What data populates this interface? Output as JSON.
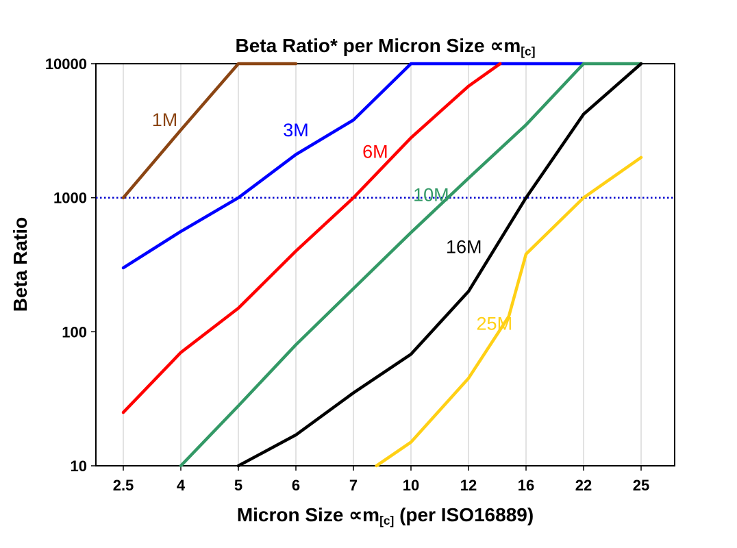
{
  "title": {
    "main": "Beta Ratio* per Micron Size ∝m",
    "sub": "[c]"
  },
  "ylabel": "Beta Ratio",
  "xlabel": {
    "main": "Micron Size ∝m",
    "sub": "[c]",
    "post": " (per ISO16889)"
  },
  "chart_data": {
    "type": "line",
    "title": "Beta Ratio* per Micron Size ∝m[c]",
    "xlabel": "Micron Size ∝m[c] (per ISO16889)",
    "ylabel": "Beta Ratio",
    "yscale": "log",
    "ylim": [
      10,
      10000
    ],
    "y_ticks": [
      10,
      100,
      1000,
      10000
    ],
    "categories": [
      "2.5",
      "4",
      "5",
      "6",
      "7",
      "10",
      "12",
      "16",
      "22",
      "25"
    ],
    "grid": {
      "vertical": true,
      "color": "#c6c6c6"
    },
    "border_color": "#000000",
    "reference_line": {
      "value": 1000,
      "color": "#0000CD",
      "style": "dotted"
    },
    "legend_position": "inline-labels",
    "series": [
      {
        "name": "1M",
        "color": "#8B4513",
        "points": [
          [
            0,
            1000
          ],
          [
            1,
            3200
          ],
          [
            2,
            10000
          ],
          [
            3,
            10000
          ]
        ],
        "label": {
          "xi": 0.72,
          "value": 3800
        }
      },
      {
        "name": "3M",
        "color": "#0000FF",
        "points": [
          [
            0,
            300
          ],
          [
            1,
            560
          ],
          [
            2,
            1000
          ],
          [
            3,
            2100
          ],
          [
            4,
            3800
          ],
          [
            5,
            10000
          ],
          [
            8,
            10000
          ]
        ],
        "label": {
          "xi": 3.0,
          "value": 3200
        }
      },
      {
        "name": "6M",
        "color": "#FF0000",
        "points": [
          [
            0,
            25
          ],
          [
            1,
            70
          ],
          [
            2,
            150
          ],
          [
            3,
            400
          ],
          [
            4,
            1000
          ],
          [
            5,
            2800
          ],
          [
            6,
            6800
          ],
          [
            6.55,
            10000
          ]
        ],
        "label": {
          "xi": 4.38,
          "value": 2200
        }
      },
      {
        "name": "10M",
        "color": "#339966",
        "points": [
          [
            1,
            10
          ],
          [
            2,
            28
          ],
          [
            3,
            80
          ],
          [
            4,
            210
          ],
          [
            5,
            550
          ],
          [
            6,
            1400
          ],
          [
            7,
            3500
          ],
          [
            8,
            10000
          ],
          [
            9,
            10000
          ]
        ],
        "label": {
          "xi": 5.35,
          "value": 1050
        }
      },
      {
        "name": "16M",
        "color": "#000000",
        "points": [
          [
            2,
            10
          ],
          [
            3,
            17
          ],
          [
            4,
            35
          ],
          [
            5,
            68
          ],
          [
            6,
            200
          ],
          [
            7,
            1000
          ],
          [
            8,
            4200
          ],
          [
            9,
            10000
          ]
        ],
        "label": {
          "xi": 5.92,
          "value": 430
        }
      },
      {
        "name": "25M",
        "color": "#FFD015",
        "points": [
          [
            4.4,
            10
          ],
          [
            5,
            15
          ],
          [
            6,
            45
          ],
          [
            6.7,
            130
          ],
          [
            7,
            380
          ],
          [
            8,
            1000
          ],
          [
            9,
            2000
          ]
        ],
        "label": {
          "xi": 6.45,
          "value": 115
        }
      }
    ]
  }
}
